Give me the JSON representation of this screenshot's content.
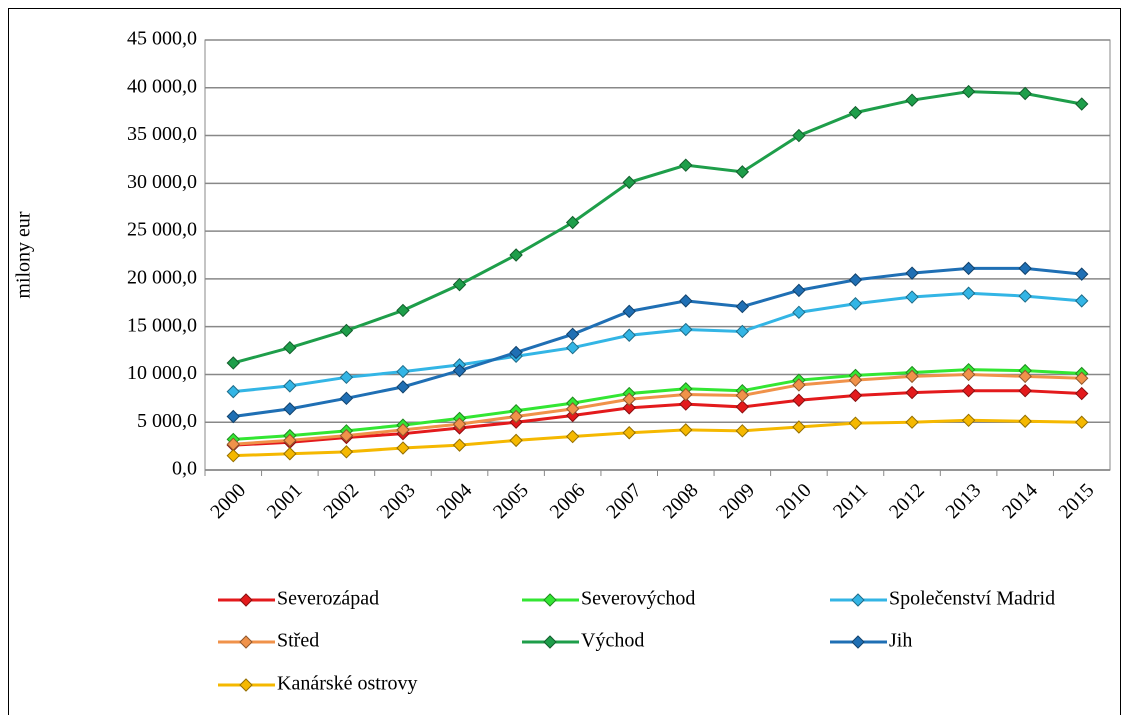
{
  "chart_data": {
    "type": "line",
    "y_label": "milony eur",
    "categories": [
      "2000",
      "2001",
      "2002",
      "2003",
      "2004",
      "2005",
      "2006",
      "2007",
      "2008",
      "2009",
      "2010",
      "2011",
      "2012",
      "2013",
      "2014",
      "2015"
    ],
    "series": [
      {
        "name": "Severozápad",
        "color": "#e31a1c",
        "values": [
          2600,
          2900,
          3400,
          3800,
          4400,
          5000,
          5700,
          6500,
          6900,
          6600,
          7300,
          7800,
          8100,
          8300,
          8300,
          8000
        ]
      },
      {
        "name": "Severovýchod",
        "color": "#33e633",
        "values": [
          3200,
          3600,
          4100,
          4700,
          5400,
          6200,
          7000,
          8000,
          8500,
          8300,
          9400,
          9900,
          10200,
          10500,
          10400,
          10100
        ]
      },
      {
        "name": "Společenství Madrid",
        "color": "#33b5e5",
        "values": [
          8200,
          8800,
          9700,
          10300,
          11000,
          11900,
          12800,
          14100,
          14700,
          14500,
          16500,
          17400,
          18100,
          18500,
          18200,
          17700
        ]
      },
      {
        "name": "Střed",
        "color": "#f0924a",
        "values": [
          2700,
          3100,
          3600,
          4200,
          4800,
          5600,
          6400,
          7400,
          7900,
          7800,
          8900,
          9400,
          9800,
          10000,
          9800,
          9600
        ]
      },
      {
        "name": "Východ",
        "color": "#1e9e4a",
        "values": [
          11200,
          12800,
          14600,
          16700,
          19400,
          22500,
          25900,
          30100,
          31900,
          31200,
          35000,
          37400,
          38700,
          39600,
          39400,
          38300
        ]
      },
      {
        "name": "Jih",
        "color": "#1f6fb4",
        "values": [
          5600,
          6400,
          7500,
          8700,
          10400,
          12300,
          14200,
          16600,
          17700,
          17100,
          18800,
          19900,
          20600,
          21100,
          21100,
          20500
        ]
      },
      {
        "name": "Kanárské ostrovy",
        "color": "#f5b800",
        "values": [
          1500,
          1700,
          1900,
          2300,
          2600,
          3100,
          3500,
          3900,
          4200,
          4100,
          4500,
          4900,
          5000,
          5200,
          5100,
          5000
        ]
      }
    ],
    "ylim": [
      0,
      45000
    ],
    "yticks": [
      {
        "value": 0,
        "label": "0,0"
      },
      {
        "value": 5000,
        "label": "5 000,0"
      },
      {
        "value": 10000,
        "label": "10 000,0"
      },
      {
        "value": 15000,
        "label": "15 000,0"
      },
      {
        "value": 20000,
        "label": "20 000,0"
      },
      {
        "value": 25000,
        "label": "25 000,0"
      },
      {
        "value": 30000,
        "label": "30 000,0"
      },
      {
        "value": 35000,
        "label": "35 000,0"
      },
      {
        "value": 40000,
        "label": "40 000,0"
      },
      {
        "value": 45000,
        "label": "45 000,0"
      }
    ],
    "grid": true,
    "legend": "bottom"
  }
}
